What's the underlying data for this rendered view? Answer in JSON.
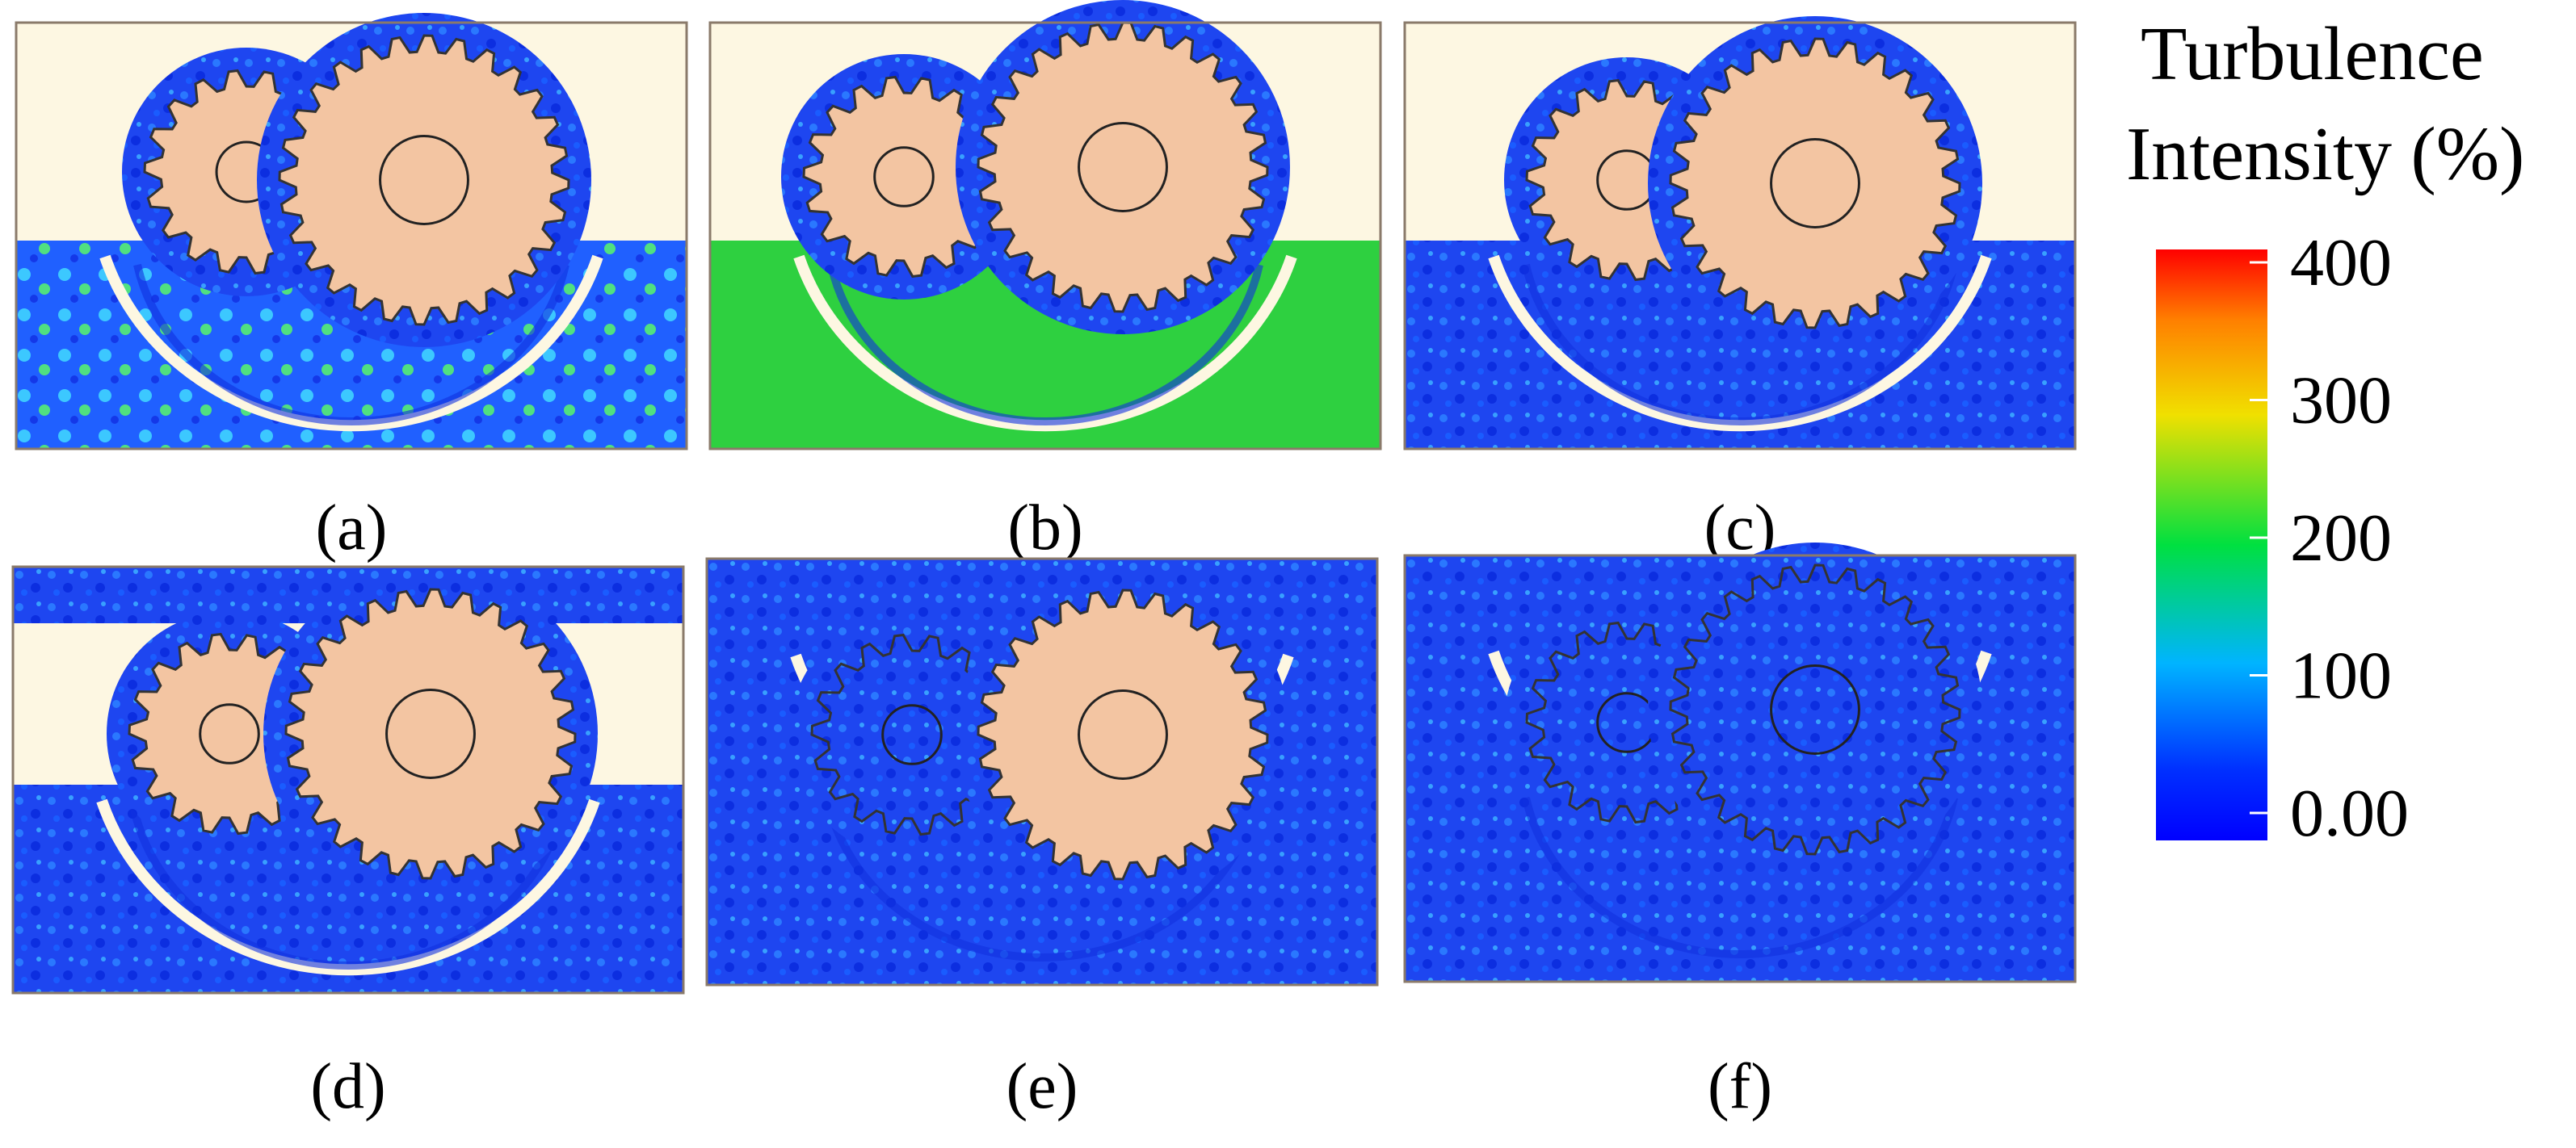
{
  "panels": [
    {
      "label": "(a)"
    },
    {
      "label": "(b)"
    },
    {
      "label": "(c)"
    },
    {
      "label": "(d)"
    },
    {
      "label": "(e)"
    },
    {
      "label": "(f)"
    }
  ],
  "colorbar": {
    "title_lines": [
      "Turbulence",
      "Intensity (%)"
    ],
    "range": [
      0,
      400
    ],
    "ticks": [
      400,
      300,
      200,
      100,
      {
        "value": 0,
        "label": "0.00"
      }
    ]
  }
}
